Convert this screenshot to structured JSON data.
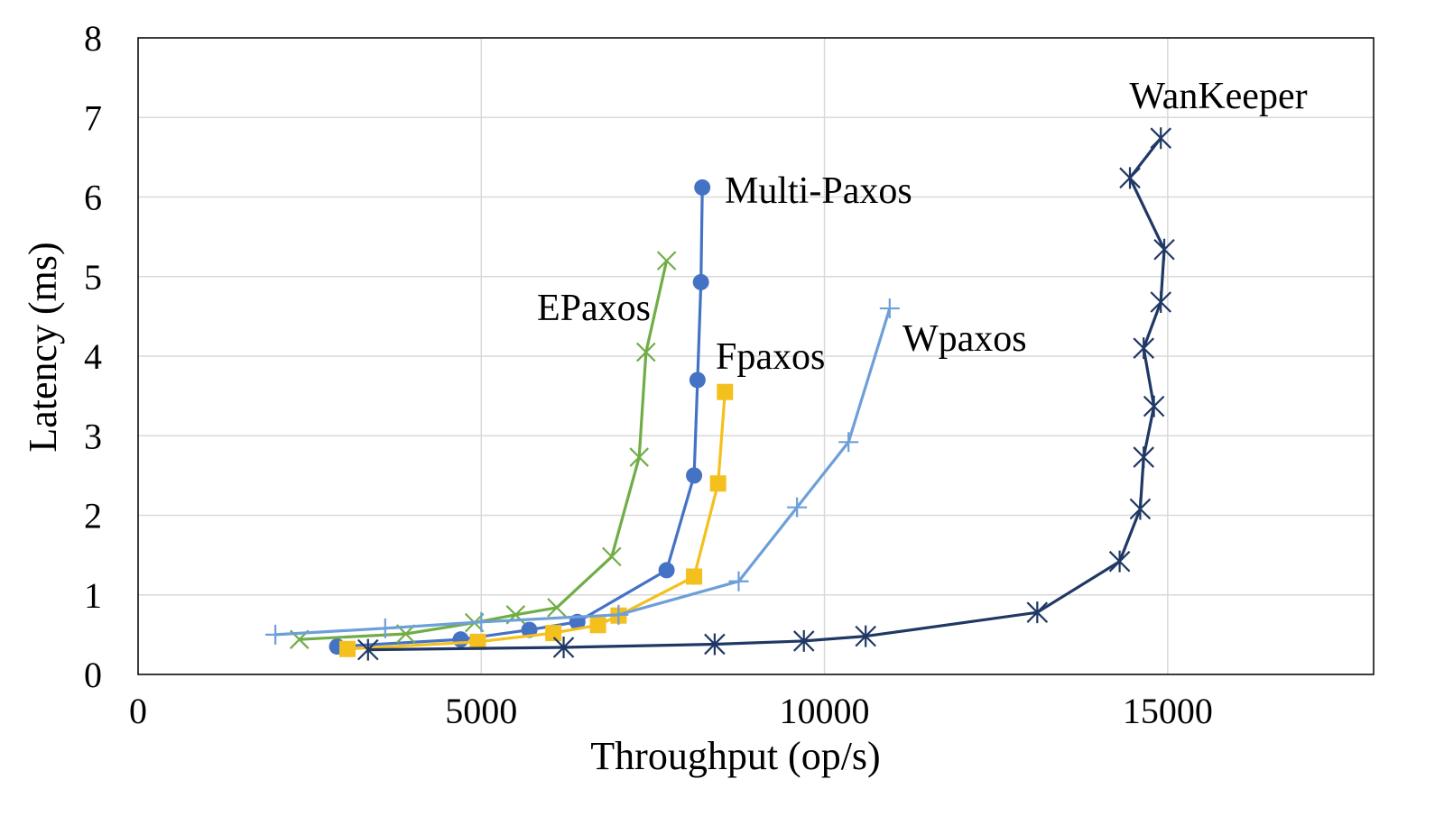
{
  "chart_data": {
    "type": "line",
    "xlabel": "Throughput (op/s)",
    "ylabel": "Latency (ms)",
    "xlim": [
      0,
      18000
    ],
    "ylim": [
      0,
      8
    ],
    "x_ticks": [
      "0",
      "5000",
      "10000",
      "15000"
    ],
    "y_ticks": [
      "0",
      "1",
      "2",
      "3",
      "4",
      "5",
      "6",
      "7",
      "8"
    ],
    "grid": true,
    "legend": "none (series labeled directly on plot)",
    "series": [
      {
        "name": "Multi-Paxos",
        "color": "#4472c4",
        "marker": "circle",
        "points": [
          [
            2900,
            0.35
          ],
          [
            4700,
            0.44
          ],
          [
            5700,
            0.56
          ],
          [
            6400,
            0.66
          ],
          [
            7700,
            1.31
          ],
          [
            8100,
            2.5
          ],
          [
            8150,
            3.7
          ],
          [
            8200,
            4.93
          ],
          [
            8220,
            6.12
          ]
        ]
      },
      {
        "name": "EPaxos",
        "color": "#70ad47",
        "marker": "x",
        "points": [
          [
            2350,
            0.44
          ],
          [
            3900,
            0.51
          ],
          [
            4900,
            0.65
          ],
          [
            5500,
            0.75
          ],
          [
            6100,
            0.84
          ],
          [
            6900,
            1.48
          ],
          [
            7300,
            2.73
          ],
          [
            7400,
            4.05
          ],
          [
            7700,
            5.2
          ]
        ]
      },
      {
        "name": "Fpaxos",
        "color": "#f4c01e",
        "marker": "square",
        "points": [
          [
            3050,
            0.32
          ],
          [
            4950,
            0.41
          ],
          [
            6050,
            0.52
          ],
          [
            6700,
            0.62
          ],
          [
            7000,
            0.74
          ],
          [
            8100,
            1.23
          ],
          [
            8450,
            2.4
          ],
          [
            8550,
            3.55
          ]
        ]
      },
      {
        "name": "Wpaxos",
        "color": "#6d9fd8",
        "marker": "plus",
        "points": [
          [
            2000,
            0.5
          ],
          [
            3600,
            0.58
          ],
          [
            5000,
            0.66
          ],
          [
            7000,
            0.75
          ],
          [
            8750,
            1.17
          ],
          [
            9600,
            2.1
          ],
          [
            10350,
            2.92
          ],
          [
            10950,
            4.6
          ]
        ]
      },
      {
        "name": "WanKeeper",
        "color": "#203864",
        "marker": "asterisk",
        "points": [
          [
            3350,
            0.31
          ],
          [
            6200,
            0.34
          ],
          [
            8400,
            0.38
          ],
          [
            9700,
            0.42
          ],
          [
            10600,
            0.48
          ],
          [
            13100,
            0.78
          ],
          [
            14300,
            1.42
          ],
          [
            14600,
            2.08
          ],
          [
            14650,
            2.73
          ],
          [
            14800,
            3.37
          ],
          [
            14650,
            4.1
          ],
          [
            14900,
            4.68
          ],
          [
            14950,
            5.34
          ],
          [
            14450,
            6.24
          ],
          [
            14900,
            6.74
          ]
        ]
      }
    ]
  }
}
